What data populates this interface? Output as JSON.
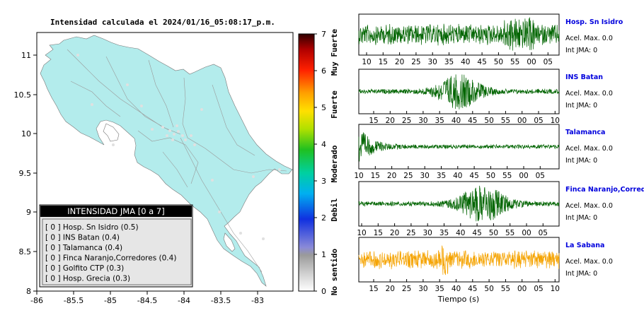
{
  "map": {
    "title": "Intensidad calculada el 2024/01/16_05:08:17_p.m.",
    "x_ticks": [
      "-86",
      "-85.5",
      "-85",
      "-84.5",
      "-84",
      "-83.5",
      "-83"
    ],
    "y_ticks": [
      "11",
      "10.5",
      "10",
      "9.5",
      "9",
      "8.5",
      "8"
    ],
    "land_color": "#b3ecec",
    "legend": {
      "title": "INTENSIDAD JMA [0 a 7]",
      "items": [
        "[ 0 ]  Hosp. Sn Isidro (0.5)",
        "[ 0 ]  INS Batan (0.4)",
        "[ 0 ]  Talamanca (0.4)",
        "[ 0 ]  Finca Naranjo,Corredores (0.4)",
        "[ 0 ]  Golfito CTP (0.3)",
        "[ 0 ]  Hosp. Grecia (0.3)"
      ]
    }
  },
  "colorbar": {
    "ticks": [
      "0",
      "1",
      "2",
      "3",
      "4",
      "5",
      "6",
      "7"
    ],
    "labels": [
      "No sentido",
      "Debil",
      "Moderado",
      "Fuerte",
      "Muy Fuerte"
    ]
  },
  "chart_data": {
    "type": "line",
    "xlabel": "Tiempo (s)",
    "traces": [
      {
        "name": "Hosp. Sn Isidro",
        "accel": "Acel. Max. 0.0",
        "int": "Int JMA: 0",
        "ticks": [
          "10",
          "15",
          "20",
          "25",
          "30",
          "35",
          "40",
          "45",
          "50",
          "55",
          "00",
          "05"
        ],
        "color": "#006400"
      },
      {
        "name": "INS Batan",
        "accel": "Acel. Max. 0.0",
        "int": "Int JMA: 0",
        "ticks": [
          "15",
          "20",
          "25",
          "30",
          "35",
          "40",
          "45",
          "50",
          "55",
          "00",
          "05",
          "10"
        ],
        "color": "#006400"
      },
      {
        "name": "Talamanca",
        "accel": "Acel. Max. 0.0",
        "int": "Int JMA: 0",
        "ticks": [
          "10",
          "15",
          "20",
          "25",
          "30",
          "35",
          "40",
          "45",
          "50",
          "55",
          "00",
          "05"
        ],
        "color": "#006400"
      },
      {
        "name": "Finca Naranjo,Corredores",
        "accel": "Acel. Max. 0.0",
        "int": "Int JMA: 0",
        "ticks": [
          "10",
          "15",
          "20",
          "25",
          "30",
          "35",
          "40",
          "45",
          "50",
          "55",
          "00",
          "05"
        ],
        "color": "#006400"
      },
      {
        "name": "La Sabana",
        "accel": "Acel. Max. 0.0",
        "int": "Int JMA: 0",
        "ticks": [
          "15",
          "20",
          "25",
          "30",
          "35",
          "40",
          "45",
          "50",
          "55",
          "00",
          "05",
          "10"
        ],
        "color": "#f5a300"
      }
    ]
  }
}
